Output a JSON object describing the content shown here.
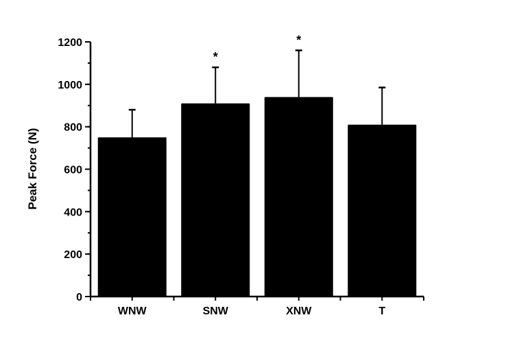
{
  "chart_data": {
    "type": "bar",
    "title": "",
    "xlabel": "",
    "ylabel": "Peak Force (N)",
    "ylim": [
      0,
      1200
    ],
    "yticks": [
      "0",
      "200",
      "400",
      "600",
      "800",
      "1000",
      "1200"
    ],
    "y_minor_step": 100,
    "grid": false,
    "categories": [
      "WNW",
      "SNW",
      "XNW",
      "T"
    ],
    "values": [
      750,
      910,
      940,
      810
    ],
    "error_upper": [
      880,
      1080,
      1160,
      985
    ],
    "annotations": [
      "",
      "*",
      "*",
      ""
    ],
    "bar_color": "#000000"
  }
}
